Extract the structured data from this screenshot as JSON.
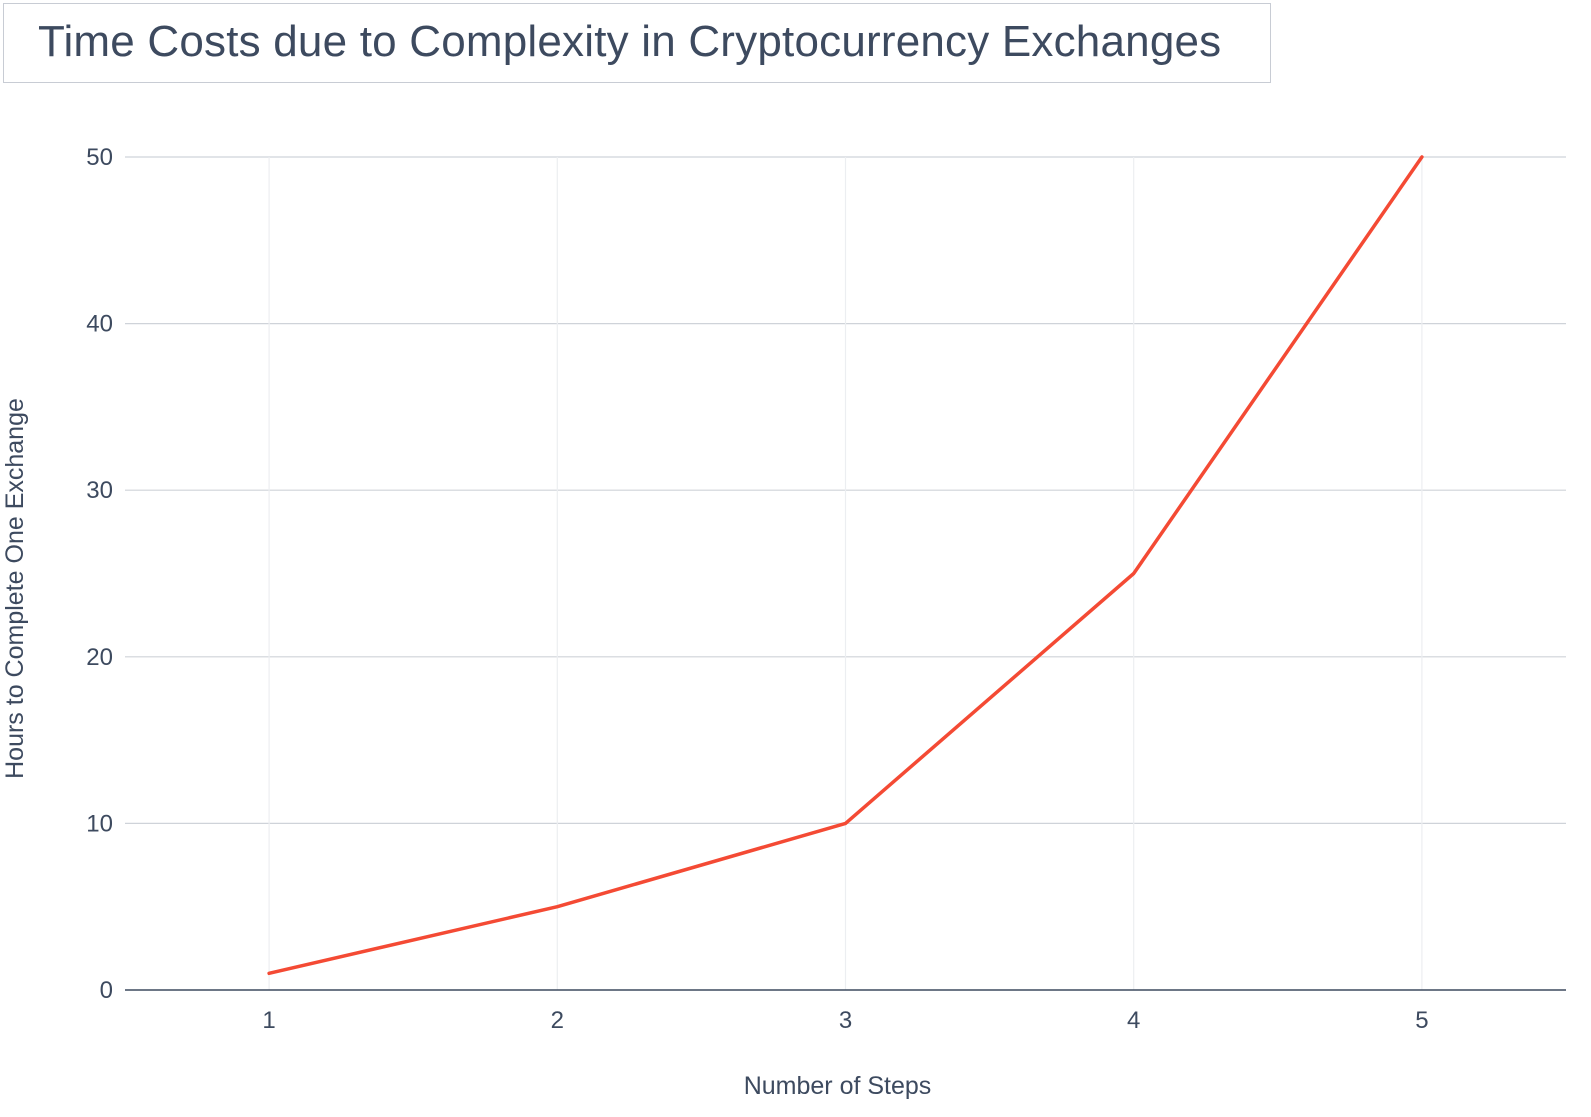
{
  "chart_data": {
    "type": "line",
    "title": "Time Costs due to Complexity in Cryptocurrency Exchanges",
    "xlabel": "Number of Steps",
    "ylabel": "Hours to Complete One Exchange",
    "x": [
      1,
      2,
      3,
      4,
      5
    ],
    "series": [
      {
        "values": [
          1,
          5,
          10,
          25,
          50
        ],
        "color": "#f44a34"
      }
    ],
    "xticks": [
      "1",
      "2",
      "3",
      "4",
      "5"
    ],
    "yticks": [
      "0",
      "10",
      "20",
      "30",
      "40",
      "50"
    ],
    "ytick_values": [
      0,
      10,
      20,
      30,
      40,
      50
    ],
    "xlim": [
      0.5,
      5.5
    ],
    "ylim": [
      0,
      50
    ],
    "grid": true,
    "legend": "none"
  }
}
